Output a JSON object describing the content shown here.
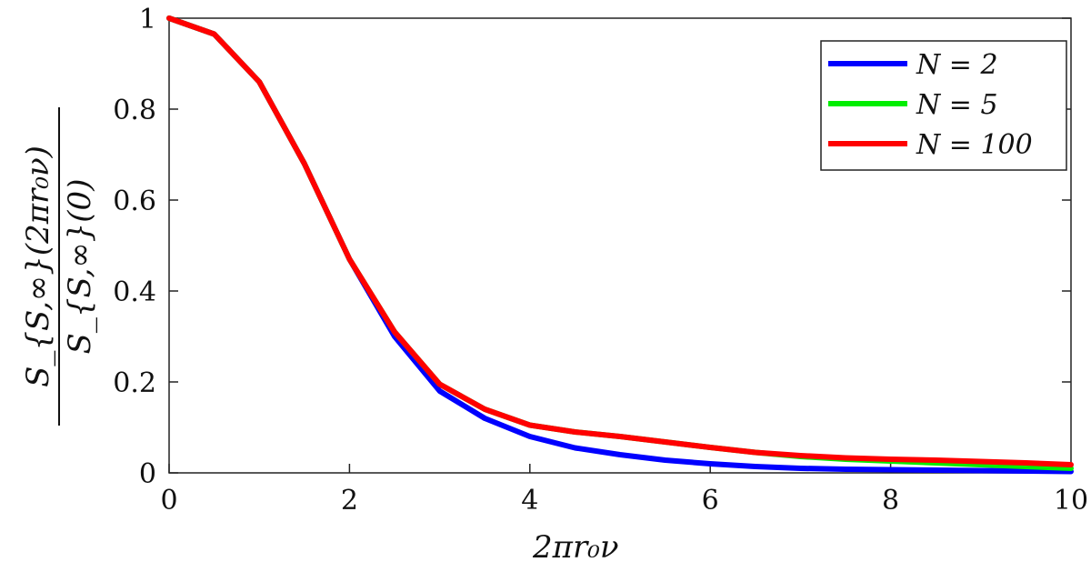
{
  "chart_data": {
    "type": "line",
    "xlabel": "2πr₀ν",
    "ylabel": {
      "numerator": "S_{S,∞}(2πr₀ν)",
      "denominator": "S_{S,∞}(0)"
    },
    "xlim": [
      0,
      10
    ],
    "ylim": [
      0,
      1
    ],
    "xticks": [
      "0",
      "2",
      "4",
      "6",
      "8",
      "10"
    ],
    "yticks": [
      "0",
      "0.2",
      "0.4",
      "0.6",
      "0.8",
      "1"
    ],
    "grid": false,
    "legend_position": "top-right",
    "x": [
      0,
      0.5,
      1,
      1.5,
      2,
      2.5,
      3,
      3.5,
      4,
      4.5,
      5,
      5.5,
      6,
      6.5,
      7,
      7.5,
      8,
      8.5,
      9,
      9.5,
      10
    ],
    "series": [
      {
        "name": "N = 2",
        "color": "#0000ff",
        "values": [
          1,
          0.965,
          0.86,
          0.68,
          0.47,
          0.3,
          0.18,
          0.12,
          0.08,
          0.055,
          0.04,
          0.028,
          0.02,
          0.014,
          0.01,
          0.008,
          0.007,
          0.006,
          0.005,
          0.004,
          0.003
        ]
      },
      {
        "name": "N = 5",
        "color": "#00ee00",
        "values": [
          1,
          0.965,
          0.86,
          0.68,
          0.47,
          0.31,
          0.195,
          0.14,
          0.105,
          0.09,
          0.08,
          0.068,
          0.056,
          0.045,
          0.036,
          0.03,
          0.026,
          0.022,
          0.018,
          0.014,
          0.01
        ]
      },
      {
        "name": "N = 100",
        "color": "#ff0000",
        "values": [
          1,
          0.965,
          0.86,
          0.68,
          0.47,
          0.31,
          0.195,
          0.14,
          0.105,
          0.09,
          0.08,
          0.068,
          0.056,
          0.045,
          0.038,
          0.033,
          0.03,
          0.028,
          0.025,
          0.022,
          0.018
        ]
      }
    ]
  }
}
